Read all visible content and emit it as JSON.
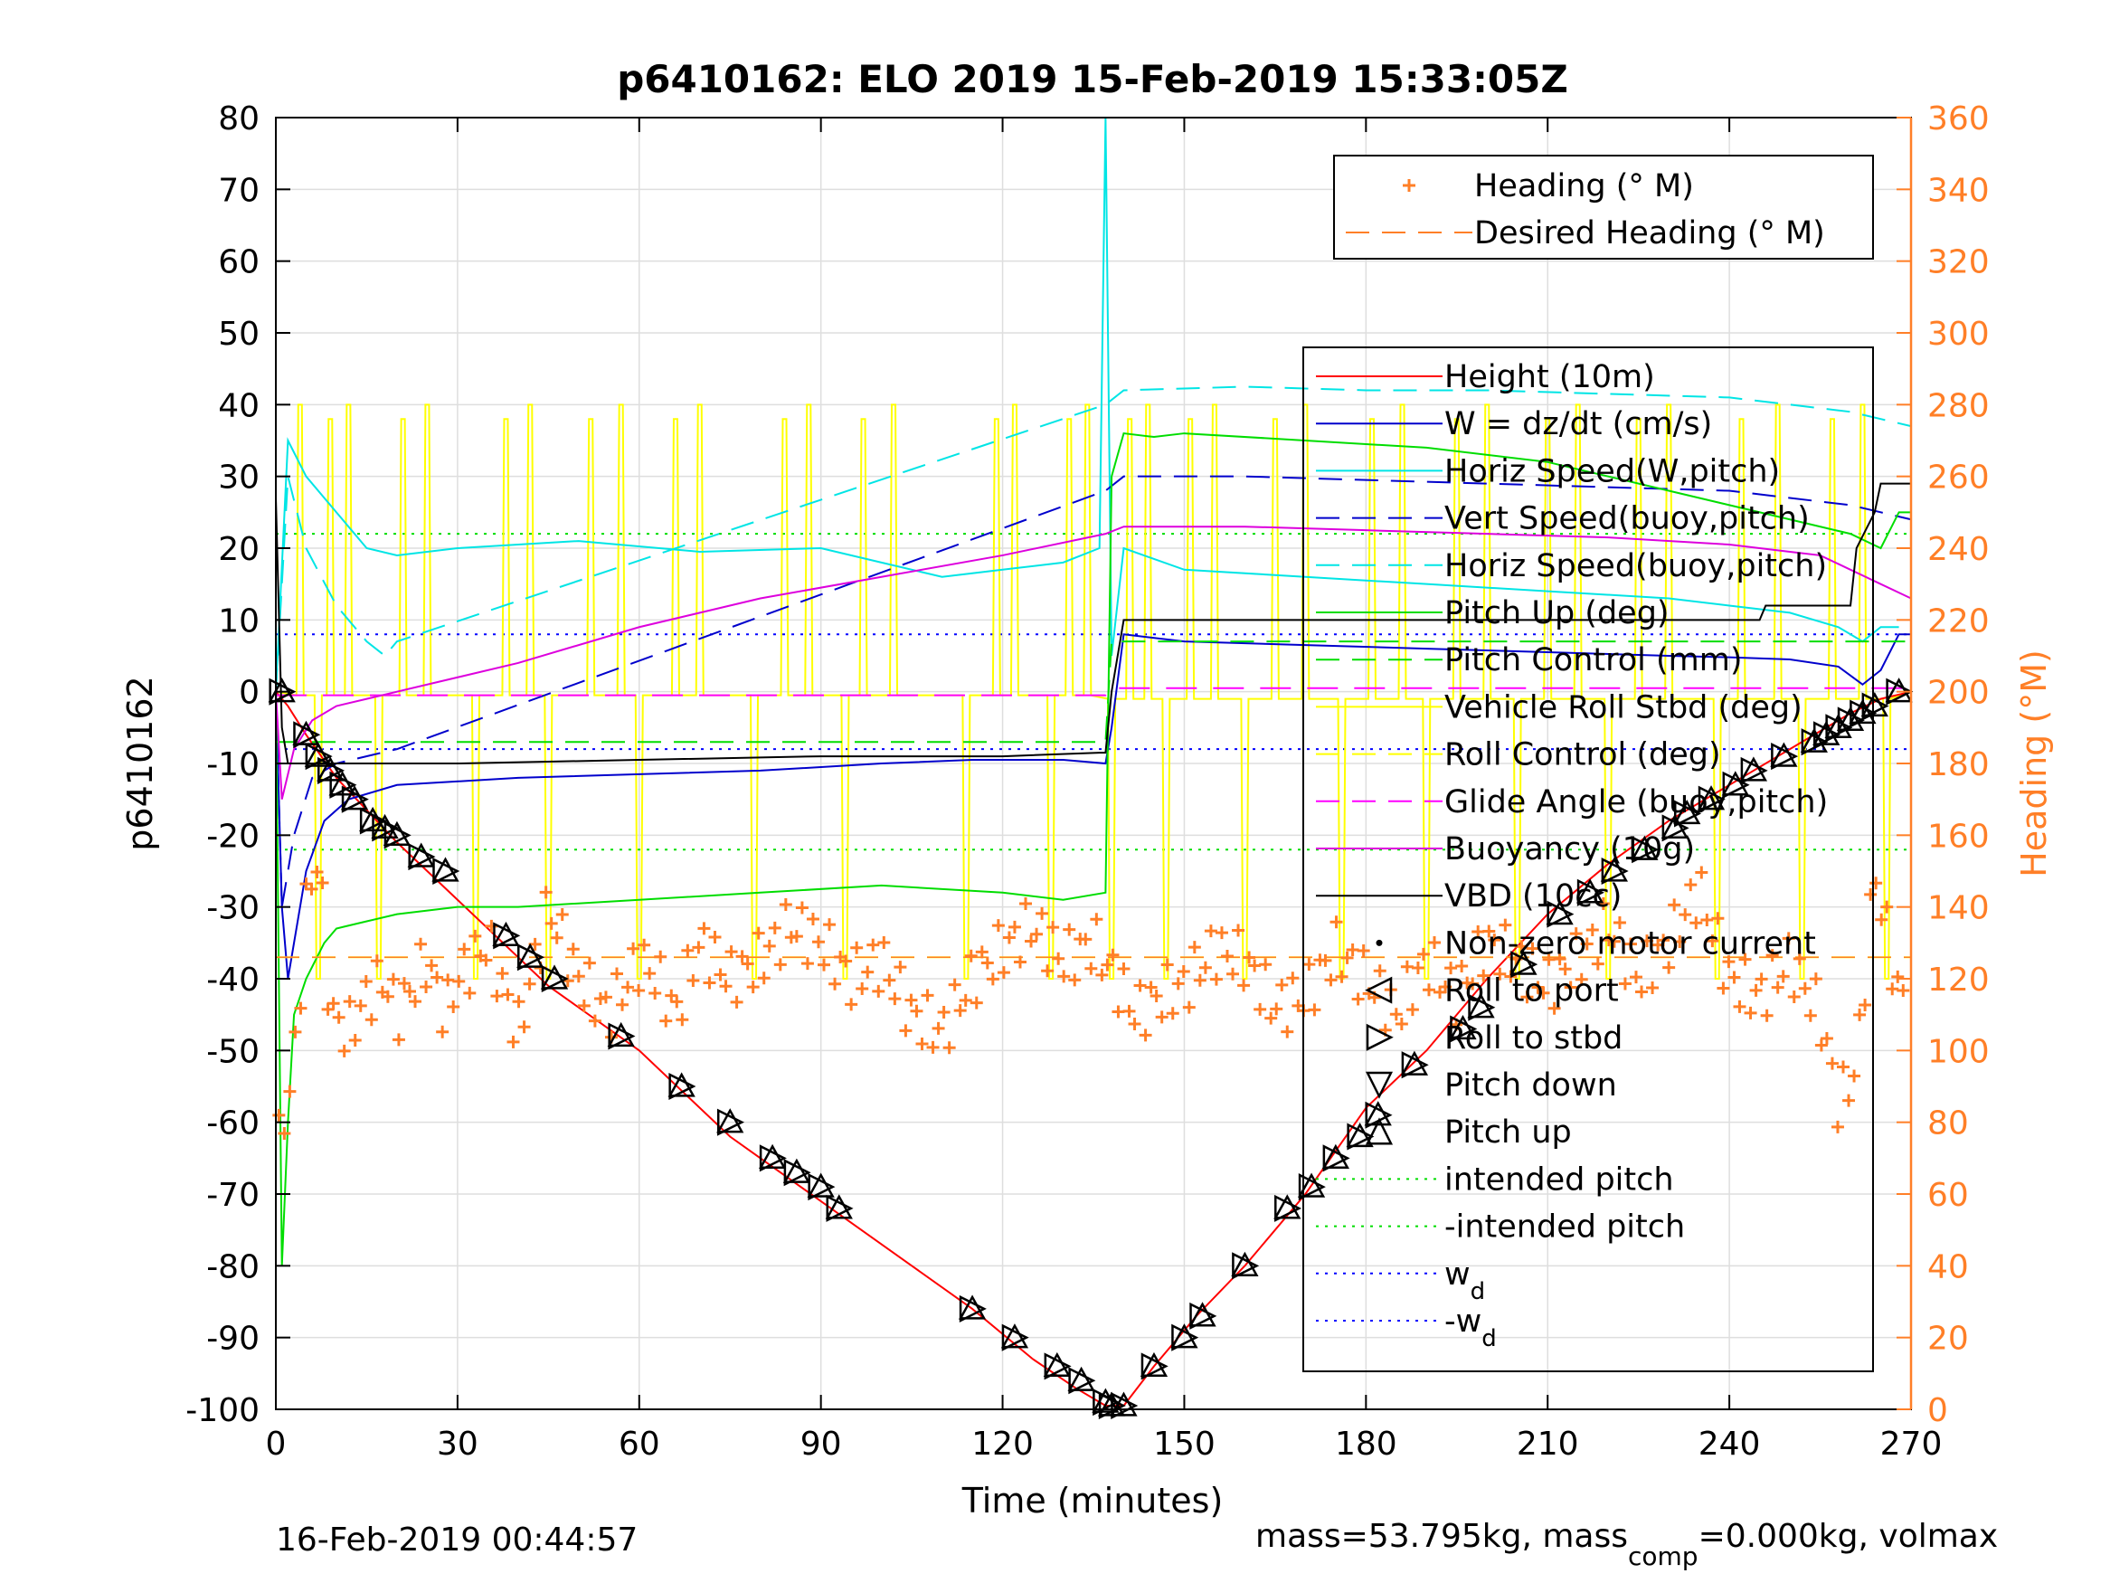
{
  "chart_data": {
    "type": "line",
    "title": "p6410162: ELO 2019 15-Feb-2019 15:33:05Z",
    "xlabel": "Time (minutes)",
    "ylabel_left": "p6410162",
    "ylabel_right": "Heading (°M)",
    "xlim": [
      0,
      270
    ],
    "ylim_left": [
      -100,
      80
    ],
    "ylim_right": [
      0,
      360
    ],
    "xticks": [
      "0",
      "30",
      "60",
      "90",
      "120",
      "150",
      "180",
      "210",
      "240",
      "270"
    ],
    "yticks_left": [
      "-100",
      "-90",
      "-80",
      "-70",
      "-60",
      "-50",
      "-40",
      "-30",
      "-20",
      "-10",
      "0",
      "10",
      "20",
      "30",
      "40",
      "50",
      "60",
      "70",
      "80"
    ],
    "yticks_right": [
      "0",
      "20",
      "40",
      "60",
      "80",
      "100",
      "120",
      "140",
      "160",
      "180",
      "200",
      "220",
      "240",
      "260",
      "280",
      "300",
      "320",
      "340",
      "360"
    ],
    "grid": true,
    "footer_left": "16-Feb-2019 00:44:57",
    "footer_right_parts": [
      "mass=53.795kg, mass",
      "comp",
      "=0.000kg, volmax"
    ],
    "colors": {
      "height": "#ff0000",
      "w": "#0000cc",
      "horiz_w": "#00e5e5",
      "vert_buoy": "#0000cc",
      "horiz_buoy": "#00e5e5",
      "pitch_up": "#00dd00",
      "pitch_control": "#00dd00",
      "roll": "#ffff00",
      "roll_control": "#ffff00",
      "glide": "#ff00ff",
      "buoyancy": "#dd00dd",
      "vbd": "#000000",
      "heading": "#ff7f27",
      "intended": "#00dd00",
      "wd": "#0000ff"
    },
    "legend_top": {
      "placement": "top-right",
      "entries": [
        {
          "label": "Heading (° M)",
          "style": "plus",
          "color": "#ff7f27"
        },
        {
          "label": "Desired Heading (° M)",
          "style": "dash",
          "color": "#ff7f27"
        }
      ]
    },
    "legend_main": {
      "placement": "right",
      "entries": [
        {
          "label": "Height (10m)",
          "style": "solid",
          "color": "#ff0000"
        },
        {
          "label": "W = dz/dt (cm/s)",
          "style": "solid",
          "color": "#0000cc"
        },
        {
          "label": "Horiz Speed(W,pitch)",
          "style": "solid",
          "color": "#00e5e5"
        },
        {
          "label": "Vert Speed(buoy,pitch)",
          "style": "dash",
          "color": "#0000cc"
        },
        {
          "label": "Horiz Speed(buoy,pitch)",
          "style": "dash",
          "color": "#00e5e5"
        },
        {
          "label": "Pitch Up (deg)",
          "style": "solid",
          "color": "#00dd00"
        },
        {
          "label": "Pitch Control (mm)",
          "style": "dash",
          "color": "#00dd00"
        },
        {
          "label": "Vehicle Roll Stbd (deg)",
          "style": "solid",
          "color": "#ffff00"
        },
        {
          "label": "Roll Control (deg)",
          "style": "dash",
          "color": "#ffff00"
        },
        {
          "label": "Glide Angle (buoy,pitch)",
          "style": "dash",
          "color": "#ff00ff"
        },
        {
          "label": "Buoyancy (10g)",
          "style": "solid",
          "color": "#dd00dd"
        },
        {
          "label": "VBD (10cc)",
          "style": "solid",
          "color": "#000000"
        },
        {
          "label": "Non-zero motor current",
          "style": "dot",
          "color": "#000000"
        },
        {
          "label": "Roll to port",
          "style": "tri-left",
          "color": "#000000"
        },
        {
          "label": "Roll to stbd",
          "style": "tri-right",
          "color": "#000000"
        },
        {
          "label": "Pitch down",
          "style": "tri-down",
          "color": "#000000"
        },
        {
          "label": "Pitch up",
          "style": "tri-up",
          "color": "#000000"
        },
        {
          "label": "intended pitch",
          "style": "dotted",
          "color": "#00dd00"
        },
        {
          "label": "-intended pitch",
          "style": "dotted",
          "color": "#00dd00"
        },
        {
          "label": "w",
          "sub": "d",
          "style": "dotted",
          "color": "#0000ff"
        },
        {
          "label": "-w",
          "sub": "d",
          "style": "dotted",
          "color": "#0000ff"
        }
      ]
    },
    "series": [
      {
        "name": "Height (10m)",
        "color": "#ff0000",
        "x": [
          0,
          2,
          5,
          10,
          20,
          30,
          45,
          60,
          75,
          90,
          105,
          115,
          125,
          132,
          137,
          140,
          145,
          152,
          160,
          170,
          180,
          190,
          200,
          210,
          220,
          230,
          240,
          250,
          260,
          265,
          270
        ],
        "y": [
          0,
          -2,
          -6,
          -12,
          -21,
          -29,
          -41,
          -50,
          -62,
          -71,
          -80,
          -86,
          -93,
          -97,
          -99.5,
          -99.5,
          -94,
          -87,
          -80,
          -70,
          -58,
          -50,
          -40,
          -31,
          -24,
          -18,
          -13,
          -8,
          -3,
          -1,
          0
        ]
      },
      {
        "name": "W = dz/dt (cm/s)",
        "color": "#0000cc",
        "x": [
          0,
          1,
          2,
          3,
          5,
          8,
          12,
          20,
          40,
          60,
          80,
          100,
          115,
          130,
          137,
          138,
          140,
          150,
          170,
          190,
          210,
          230,
          240,
          250,
          258,
          262,
          265,
          268,
          270
        ],
        "y": [
          0,
          -30,
          -40,
          -35,
          -25,
          -18,
          -15,
          -13,
          -12,
          -11.5,
          -11,
          -10,
          -9.5,
          -9.5,
          -10,
          -5,
          8,
          7,
          6.5,
          6,
          5.5,
          5,
          4.8,
          4.5,
          3.5,
          1,
          3,
          8,
          8
        ]
      },
      {
        "name": "Horiz Speed(W,pitch)",
        "color": "#00e5e5",
        "x": [
          0,
          2,
          5,
          10,
          15,
          20,
          30,
          50,
          70,
          90,
          100,
          110,
          120,
          130,
          136,
          137,
          138,
          140,
          150,
          170,
          190,
          210,
          230,
          240,
          250,
          258,
          262,
          265,
          268
        ],
        "y": [
          0,
          35,
          30,
          25,
          20,
          19,
          20,
          21,
          19.5,
          20,
          18,
          16,
          17,
          18,
          20,
          80,
          5,
          20,
          17,
          16,
          15,
          14,
          13,
          12,
          11,
          9,
          7,
          9,
          9
        ]
      },
      {
        "name": "Vert Speed(buoy,pitch)",
        "color": "#0000cc",
        "dash": "26,14",
        "x": [
          0,
          1,
          3,
          6,
          10,
          20,
          137,
          140,
          160,
          180,
          200,
          220,
          240,
          250,
          260,
          265,
          270
        ],
        "y": [
          0,
          -30,
          -20,
          -12,
          -10,
          -8,
          28,
          30,
          30,
          29.5,
          29,
          28.5,
          28,
          27,
          26,
          25,
          24
        ]
      },
      {
        "name": "Horiz Speed(buoy,pitch)",
        "color": "#00e5e5",
        "dash": "26,14",
        "x": [
          0,
          2,
          5,
          10,
          15,
          18,
          20,
          137,
          140,
          160,
          180,
          200,
          220,
          240,
          250,
          260,
          265,
          270
        ],
        "y": [
          0,
          30,
          20,
          12,
          7,
          5,
          7,
          40,
          42,
          42.5,
          42,
          42,
          41.5,
          41,
          40,
          39,
          38,
          37
        ]
      },
      {
        "name": "Pitch Up (deg)",
        "color": "#00dd00",
        "x": [
          0,
          1,
          2,
          3,
          5,
          8,
          10,
          15,
          20,
          30,
          40,
          60,
          80,
          100,
          120,
          130,
          137,
          138,
          140,
          145,
          150,
          170,
          190,
          210,
          230,
          240,
          250,
          260,
          265,
          268,
          270
        ],
        "y": [
          0,
          -80,
          -60,
          -45,
          -40,
          -35,
          -33,
          -32,
          -31,
          -30,
          -30,
          -29,
          -28,
          -27,
          -28,
          -29,
          -28,
          30,
          36,
          35.5,
          36,
          35,
          34,
          32,
          28,
          26,
          24,
          22,
          20,
          25,
          25
        ]
      },
      {
        "name": "Pitch Control (mm)",
        "color": "#00dd00",
        "dash": "26,14",
        "x": [
          0,
          8,
          137,
          138,
          270
        ],
        "y": [
          -7,
          -7,
          -7,
          7,
          7
        ]
      },
      {
        "name": "Roll Control (deg)",
        "color": "#ffff00",
        "dash": "26,14",
        "x": [
          0,
          270
        ],
        "y": [
          -37,
          -37
        ]
      },
      {
        "name": "Glide Angle (buoy,pitch)",
        "color": "#ff00ff",
        "dash": "34,18",
        "x": [
          0,
          137,
          138,
          270
        ],
        "y": [
          -0.5,
          -0.5,
          0.5,
          0.5
        ]
      },
      {
        "name": "Buoyancy (10g)",
        "color": "#dd00dd",
        "x": [
          0,
          1,
          3,
          6,
          10,
          15,
          20,
          40,
          60,
          80,
          100,
          120,
          137,
          140,
          150,
          160,
          180,
          200,
          220,
          240,
          250,
          255,
          260,
          265,
          270
        ],
        "y": [
          0,
          -15,
          -8,
          -4,
          -2,
          -1,
          0,
          4,
          9,
          13,
          16,
          19,
          22,
          23,
          23,
          23,
          22.5,
          22,
          21.5,
          20.5,
          19.5,
          19,
          17,
          15,
          13
        ]
      },
      {
        "name": "VBD (10cc)",
        "color": "#000000",
        "x": [
          0,
          1,
          2,
          3,
          10,
          30,
          60,
          90,
          120,
          136,
          137,
          138,
          140,
          150,
          170,
          190,
          210,
          230,
          240,
          245,
          246,
          260,
          261,
          264,
          265,
          270
        ],
        "y": [
          27,
          -5,
          -10,
          -10,
          -10,
          -10,
          -9.5,
          -9,
          -9,
          -8.5,
          -8.5,
          0,
          10,
          10,
          10,
          10,
          10,
          10,
          10,
          10,
          12,
          12,
          20,
          25,
          29,
          29
        ]
      }
    ],
    "reference_lines": [
      {
        "name": "intended pitch",
        "y": 22,
        "color": "#00dd00"
      },
      {
        "name": "-intended pitch",
        "y": -22,
        "color": "#00dd00"
      },
      {
        "name": "w_d",
        "y": 8,
        "color": "#0000ff"
      },
      {
        "name": "-w_d",
        "y": -8,
        "color": "#0000ff"
      }
    ],
    "roll_spikes_minutes": [
      4,
      7,
      9,
      12,
      17,
      21,
      25,
      33,
      38,
      42,
      45,
      52,
      57,
      60,
      66,
      70,
      79,
      84,
      88,
      94,
      97,
      102,
      114,
      119,
      122,
      128,
      131,
      134,
      138,
      141,
      144,
      147,
      151,
      155,
      160,
      165,
      170,
      176,
      181,
      186,
      190,
      195,
      200,
      205,
      210,
      215,
      220,
      225,
      230,
      238,
      242,
      248,
      252,
      257,
      262,
      266
    ],
    "desired_heading_deg": 126,
    "heading_deg_samples": {
      "x": [
        0,
        3,
        5,
        7,
        9,
        12,
        15,
        18,
        20,
        25,
        28,
        30,
        35,
        40,
        45,
        50,
        55,
        60,
        63,
        66,
        70,
        75,
        80,
        85,
        90,
        95,
        100,
        105,
        110,
        115,
        120,
        125,
        130,
        135,
        138,
        142,
        146,
        150,
        155,
        160,
        165,
        170,
        175,
        180,
        185,
        190,
        195,
        200,
        205,
        210,
        215,
        220,
        225,
        230,
        235,
        240,
        245,
        250,
        255,
        258,
        261,
        264,
        268
      ],
      "y": [
        70,
        95,
        140,
        155,
        110,
        105,
        115,
        120,
        110,
        125,
        110,
        120,
        130,
        105,
        140,
        120,
        110,
        125,
        120,
        110,
        130,
        120,
        125,
        135,
        130,
        120,
        125,
        110,
        105,
        120,
        128,
        135,
        125,
        130,
        122,
        110,
        115,
        118,
        128,
        125,
        112,
        115,
        128,
        120,
        110,
        125,
        115,
        130,
        125,
        118,
        125,
        135,
        120,
        130,
        145,
        120,
        115,
        125,
        110,
        85,
        95,
        150,
        115
      ]
    },
    "dive_markers": {
      "x": [
        1,
        5,
        7,
        9,
        11,
        13,
        16,
        18,
        20,
        24,
        28,
        38,
        42,
        46,
        57,
        67,
        75,
        82,
        86,
        90,
        93,
        115,
        122,
        129,
        133,
        137,
        138,
        140,
        145,
        150,
        153,
        160,
        167,
        171,
        175,
        179,
        182,
        188,
        196,
        199,
        206,
        212,
        217,
        221,
        226,
        231,
        233,
        237,
        241,
        244,
        249,
        254,
        256,
        258,
        260,
        262,
        264,
        268
      ],
      "y": [
        0,
        -6,
        -9,
        -11,
        -13,
        -15,
        -18,
        -19,
        -20,
        -23,
        -25,
        -34,
        -37,
        -40,
        -48,
        -55,
        -60,
        -65,
        -67,
        -69,
        -72,
        -86,
        -90,
        -94,
        -96,
        -99,
        -99.5,
        -99.5,
        -94,
        -90,
        -87,
        -80,
        -72,
        -69,
        -65,
        -62,
        -59,
        -52,
        -47,
        -44,
        -38,
        -31,
        -28,
        -25,
        -22,
        -19,
        -17,
        -15,
        -13,
        -11,
        -9,
        -7,
        -6,
        -5,
        -4,
        -3,
        -2,
        0
      ]
    }
  }
}
